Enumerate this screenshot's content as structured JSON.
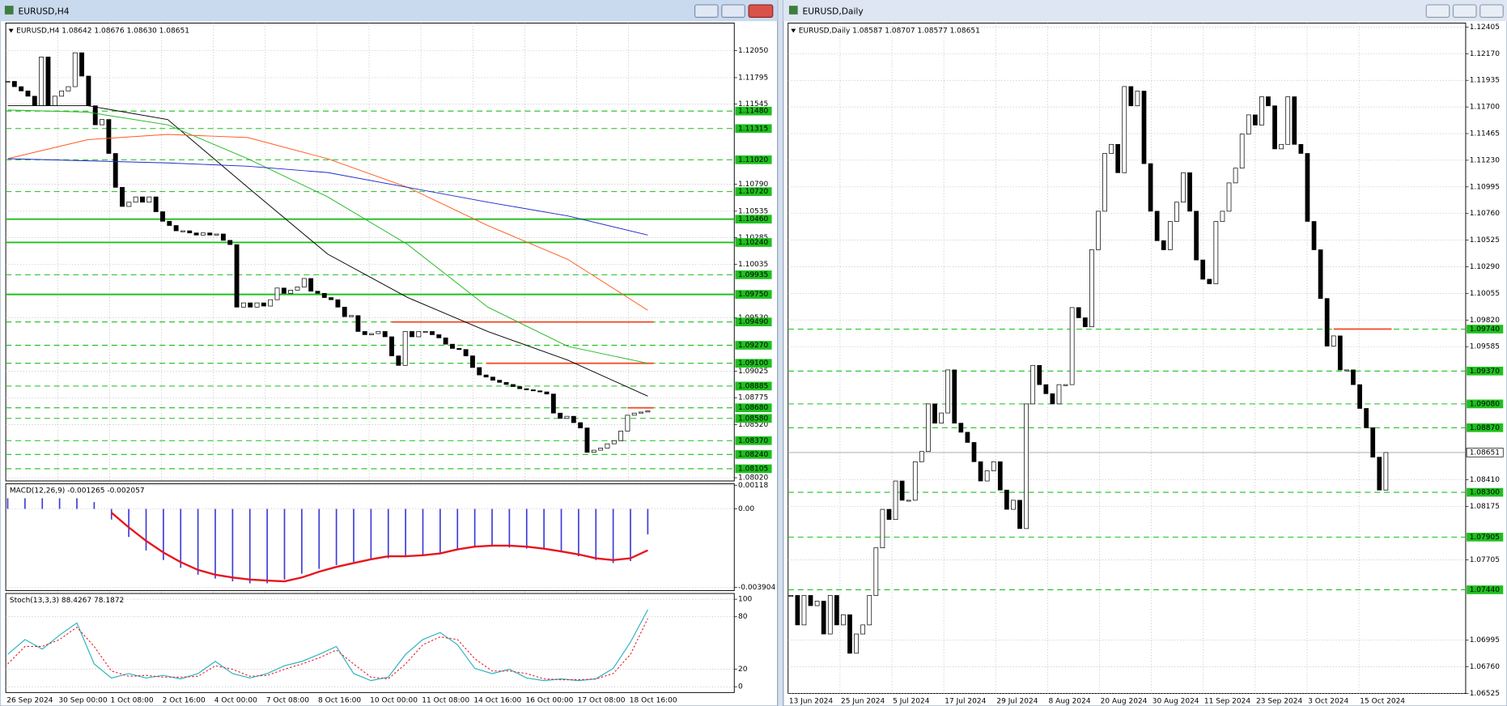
{
  "windows": [
    {
      "title": "EURUSD,H4",
      "symbol_info": "EURUSD,H4  1.08642 1.08676 1.08630 1.08651",
      "price": {
        "ylim": [
          1.0799,
          1.1231
        ],
        "yticks": [
          {
            "value": 1.1205,
            "label": "1.12050"
          },
          1.11795,
          1.11545,
          {
            "value": 1.1079,
            "label": "1.10790"
          },
          1.10535,
          1.10285,
          1.10035,
          {
            "value": 1.0953,
            "label": "1.09530"
          },
          1.09025,
          1.08775,
          {
            "value": 1.0852,
            "label": "1.08520"
          },
          {
            "value": 1.0802,
            "label": "1.08020"
          }
        ],
        "closes": [
          1.1176,
          1.1171,
          1.1167,
          1.1162,
          1.1153,
          1.1199,
          1.1153,
          1.1162,
          1.1167,
          1.1171,
          1.1203,
          1.1181,
          1.1153,
          1.1135,
          1.114,
          1.1108,
          1.1076,
          1.1058,
          1.1062,
          1.1067,
          1.1062,
          1.1067,
          1.1053,
          1.1044,
          1.104,
          1.1035,
          1.1035,
          1.1033,
          1.1031,
          1.1033,
          1.1031,
          1.1032,
          1.1026,
          1.1022,
          1.0963,
          1.0967,
          1.0963,
          1.0967,
          1.0964,
          1.097,
          1.0981,
          1.0976,
          1.0979,
          1.0982,
          1.099,
          1.0978,
          1.0976,
          1.0972,
          1.097,
          1.0963,
          1.0954,
          1.0955,
          1.094,
          1.0937,
          1.0938,
          1.094,
          1.0935,
          1.0917,
          1.0908,
          1.094,
          1.0935,
          1.094,
          1.094,
          1.0937,
          1.0934,
          1.0928,
          1.0924,
          1.0923,
          1.0917,
          1.0906,
          1.0899,
          1.0897,
          1.0894,
          1.0892,
          1.089,
          1.0888,
          1.0886,
          1.0885,
          1.0884,
          1.0883,
          1.0881,
          1.0863,
          1.0858,
          1.086,
          1.0854,
          1.0849,
          1.0826,
          1.0828,
          1.083,
          1.0834,
          1.0837,
          1.0846,
          1.0861,
          1.0863,
          1.0864,
          1.08651
        ],
        "levels": [
          {
            "value": 1.1148,
            "label": "1.11480",
            "style": "dashed"
          },
          {
            "value": 1.11315,
            "label": "1.11315",
            "style": "dashed"
          },
          {
            "value": 1.1102,
            "label": "1.11020",
            "style": "dashed"
          },
          {
            "value": 1.1072,
            "label": "1.10720",
            "style": "dashed"
          },
          {
            "value": 1.1046,
            "label": "1.10460",
            "style": "solid"
          },
          {
            "value": 1.1024,
            "label": "1.10240",
            "style": "solid"
          },
          {
            "value": 1.09935,
            "label": "1.09935",
            "style": "dashed"
          },
          {
            "value": 1.0975,
            "label": "1.09750",
            "style": "solid"
          },
          {
            "value": 1.0949,
            "label": "1.09490",
            "style": "dashed"
          },
          {
            "value": 1.0927,
            "label": "1.09270",
            "style": "dashed"
          },
          {
            "value": 1.091,
            "label": "1.09100",
            "style": "dashed"
          },
          {
            "value": 1.08885,
            "label": "1.08885",
            "style": "dashed"
          },
          {
            "value": 1.0868,
            "label": "1.08680",
            "style": "dashed"
          },
          {
            "value": 1.0858,
            "label": "1.08580",
            "style": "dashed"
          },
          {
            "value": 1.0837,
            "label": "1.08370",
            "style": "dashed"
          },
          {
            "value": 1.0824,
            "label": "1.08240",
            "style": "dashed"
          },
          {
            "value": 1.08105,
            "label": "1.08105",
            "style": "dashed"
          }
        ],
        "red_lines": [
          {
            "value": 1.0949,
            "from_bar": 57
          },
          {
            "value": 1.091,
            "from_bar": 71
          },
          {
            "value": 1.0868,
            "from_bar": 92
          }
        ],
        "moving_averages": [
          {
            "color": "#000000",
            "values": [
              1.1153,
              1.1153,
              1.114,
              1.1076,
              1.1013,
              1.0972,
              1.094,
              1.0913,
              1.0879
            ]
          },
          {
            "color": "#22b822",
            "values": [
              1.1149,
              1.1147,
              1.1135,
              1.1103,
              1.1067,
              1.1022,
              1.0963,
              1.0926,
              1.091
            ]
          },
          {
            "color": "#ff5a1e",
            "values": [
              1.1103,
              1.1121,
              1.1126,
              1.1123,
              1.1103,
              1.1076,
              1.104,
              1.1008,
              1.096
            ]
          },
          {
            "color": "#1e28c8",
            "values": [
              1.1103,
              1.1101,
              1.1099,
              1.1096,
              1.109,
              1.1076,
              1.1062,
              1.1049,
              1.1031
            ]
          }
        ]
      },
      "macd": {
        "label": "MACD(12,26,9) -0.001265 -0.002057",
        "ylim": [
          -0.00407,
          0.00125
        ],
        "yticks": [
          {
            "value": 0.00118,
            "label": "0.00118"
          },
          {
            "value": 0,
            "label": "0.00"
          },
          -0.003904
        ],
        "histogram": [
          0.00053,
          0.00053,
          0.00053,
          0.00053,
          0.00053,
          0.00034,
          -0.00053,
          -0.0014,
          -0.00207,
          -0.00255,
          -0.00294,
          -0.00328,
          -0.00347,
          -0.00361,
          -0.00371,
          -0.00371,
          -0.00352,
          -0.00323,
          -0.00299,
          -0.0028,
          -0.00265,
          -0.00251,
          -0.00246,
          -0.00241,
          -0.00231,
          -0.00222,
          -0.00207,
          -0.00193,
          -0.00188,
          -0.00193,
          -0.00198,
          -0.00202,
          -0.00217,
          -0.00236,
          -0.00255,
          -0.0027,
          -0.0026,
          -0.00127
        ],
        "signal": [
          null,
          null,
          null,
          null,
          null,
          null,
          -0.00019,
          -0.00092,
          -0.00159,
          -0.00217,
          -0.00265,
          -0.00304,
          -0.00328,
          -0.00342,
          -0.00352,
          -0.00357,
          -0.00361,
          -0.00342,
          -0.00313,
          -0.00289,
          -0.0027,
          -0.00251,
          -0.00236,
          -0.00236,
          -0.00231,
          -0.00222,
          -0.00202,
          -0.00188,
          -0.00183,
          -0.00183,
          -0.00188,
          -0.00198,
          -0.00212,
          -0.00227,
          -0.00246,
          -0.00255,
          -0.00246,
          -0.00206
        ]
      },
      "stoch": {
        "label": "Stoch(13,3,3) 88.4267 78.1872",
        "ylim": [
          -6.6,
          106.6
        ],
        "yticks": [
          100,
          80,
          20,
          0
        ],
        "main": [
          37,
          54,
          43,
          59,
          73,
          26,
          10,
          15,
          10,
          13,
          9,
          15,
          29,
          15,
          10,
          15,
          24,
          29,
          37,
          46,
          15,
          7,
          11,
          37,
          54,
          62,
          48,
          21,
          15,
          20,
          10,
          7,
          9,
          7,
          9,
          21,
          51,
          88
        ],
        "signal": [
          26,
          46,
          46,
          54,
          68,
          46,
          18,
          12,
          13,
          11,
          11,
          12,
          24,
          20,
          12,
          13,
          20,
          26,
          33,
          42,
          26,
          11,
          9,
          26,
          48,
          57,
          54,
          32,
          18,
          18,
          15,
          9,
          8,
          8,
          9,
          15,
          37,
          78
        ]
      },
      "dates": [
        "26 Sep 2024",
        "30 Sep 00:00",
        "1 Oct 08:00",
        "2 Oct 16:00",
        "4 Oct 00:00",
        "7 Oct 08:00",
        "8 Oct 16:00",
        "10 Oct 00:00",
        "11 Oct 08:00",
        "14 Oct 16:00",
        "16 Oct 00:00",
        "17 Oct 08:00",
        "18 Oct 16:00"
      ]
    },
    {
      "title": "EURUSD,Daily",
      "symbol_info": "EURUSD,Daily  1.08587 1.08707 1.08577 1.08651",
      "price": {
        "ylim": [
          1.06525,
          1.1244
        ],
        "yticks": [
          1.12405,
          {
            "value": 1.1217,
            "label": "1.12170"
          },
          1.11935,
          {
            "value": 1.117,
            "label": "1.11700"
          },
          1.11465,
          {
            "value": 1.1123,
            "label": "1.11230"
          },
          1.10995,
          {
            "value": 1.1076,
            "label": "1.10760"
          },
          1.10525,
          {
            "value": 1.1029,
            "label": "1.10290"
          },
          1.10055,
          {
            "value": 1.0982,
            "label": "1.09820"
          },
          1.09585,
          {
            "value": 1.0841,
            "label": "1.08410"
          },
          1.08175,
          1.07705,
          1.06995,
          {
            "value": 1.0676,
            "label": "1.06760"
          },
          1.06525
        ],
        "closes": [
          1.0739,
          1.0713,
          1.0739,
          1.073,
          1.0734,
          1.0705,
          1.0739,
          1.0713,
          1.0722,
          1.0688,
          1.0705,
          1.0713,
          1.0739,
          1.0781,
          1.0815,
          1.0806,
          1.084,
          1.0823,
          1.0823,
          1.0857,
          1.0866,
          1.0908,
          1.0891,
          1.09,
          1.0938,
          1.0891,
          1.0883,
          1.0874,
          1.0857,
          1.084,
          1.0849,
          1.0857,
          1.0832,
          1.0815,
          1.0823,
          1.0798,
          1.0908,
          1.0942,
          1.0925,
          1.0917,
          1.0908,
          1.0925,
          1.0925,
          1.0993,
          1.0984,
          1.0976,
          1.1044,
          1.1078,
          1.1129,
          1.1137,
          1.1112,
          1.1188,
          1.1171,
          1.1184,
          1.112,
          1.1078,
          1.1052,
          1.1044,
          1.1069,
          1.1086,
          1.1112,
          1.1078,
          1.1035,
          1.1018,
          1.1014,
          1.1069,
          1.1078,
          1.1103,
          1.1116,
          1.1146,
          1.1163,
          1.1154,
          1.1179,
          1.1171,
          1.1133,
          1.1137,
          1.1179,
          1.1137,
          1.1129,
          1.1069,
          1.1044,
          1.1001,
          1.0959,
          1.0968,
          1.0938,
          1.0938,
          1.0925,
          1.0904,
          1.0887,
          1.0861,
          1.0832,
          1.08651
        ],
        "levels": [
          {
            "value": 1.0974,
            "label": "1.09740",
            "style": "dashed"
          },
          {
            "value": 1.0937,
            "label": "1.09370",
            "style": "dashed"
          },
          {
            "value": 1.0908,
            "label": "1.09080",
            "style": "dashed"
          },
          {
            "value": 1.0887,
            "label": "1.08870",
            "style": "dashed"
          },
          {
            "value": 1.083,
            "label": "1.08300",
            "style": "dashed"
          },
          {
            "value": 1.07905,
            "label": "1.07905",
            "style": "dashed"
          },
          {
            "value": 1.0744,
            "label": "1.07440",
            "style": "dashed"
          }
        ],
        "red_lines": [
          {
            "value": 1.0974,
            "from_bar": 83
          }
        ],
        "current": {
          "value": 1.08651,
          "label": "1.08651"
        }
      },
      "dates": [
        "13 Jun 2024",
        "25 Jun 2024",
        "5 Jul 2024",
        "17 Jul 2024",
        "29 Jul 2024",
        "8 Aug 2024",
        "20 Aug 2024",
        "30 Aug 2024",
        "11 Sep 2024",
        "23 Sep 2024",
        "3 Oct 2024",
        "15 Oct 2024"
      ]
    }
  ]
}
